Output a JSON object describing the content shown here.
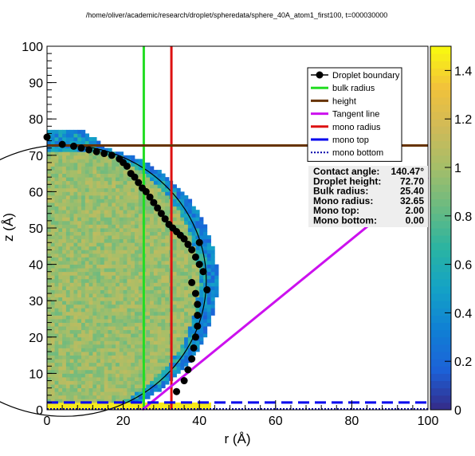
{
  "chart_data": {
    "type": "heatmap",
    "title": "/home/oliver/academic/research/droplet/spheredata/sphere_40A_atom1_first100, t=000030000",
    "xlabel": "r (Å)",
    "ylabel": "z (Å)",
    "xlim": [
      0,
      100
    ],
    "ylim": [
      0,
      100
    ],
    "x_ticks": [
      "0",
      "20",
      "40",
      "60",
      "80",
      "100"
    ],
    "y_ticks": [
      "0",
      "10",
      "20",
      "30",
      "40",
      "50",
      "60",
      "70",
      "80",
      "90",
      "100"
    ],
    "colorbar": {
      "range": [
        0,
        1.5
      ],
      "ticks": [
        "0",
        "0.2",
        "0.4",
        "0.6",
        "0.8",
        "1",
        "1.2",
        "1.4"
      ],
      "palette": [
        "#352a87",
        "#1c62d8",
        "#1080d4",
        "#14a2c6",
        "#2ab4a2",
        "#69ba81",
        "#a5be69",
        "#d0ba58",
        "#f2c23a",
        "#f9fb0e"
      ]
    },
    "legend": {
      "position": "top-right",
      "entries": [
        {
          "label": "Droplet boundary",
          "color": "#000000",
          "style": "marker-line"
        },
        {
          "label": "bulk radius",
          "color": "#22dd22",
          "style": "line"
        },
        {
          "label": "height",
          "color": "#663300",
          "style": "line"
        },
        {
          "label": "Tangent line",
          "color": "#cc11ee",
          "style": "line"
        },
        {
          "label": "mono radius",
          "color": "#dd1111",
          "style": "line"
        },
        {
          "label": "mono top",
          "color": "#0000ee",
          "style": "line"
        },
        {
          "label": "mono bottom",
          "color": "#0000aa",
          "style": "dotted"
        }
      ]
    },
    "annotations": [
      {
        "label": "Contact angle:",
        "value": "140.47°"
      },
      {
        "label": "Droplet height:",
        "value": "72.70"
      },
      {
        "label": "Bulk radius:",
        "value": "25.40"
      },
      {
        "label": "Mono radius:",
        "value": "32.65"
      },
      {
        "label": "Mono top:",
        "value": "2.00"
      },
      {
        "label": "Mono bottom:",
        "value": "0.00"
      }
    ],
    "height": 72.7,
    "bulk_radius": 25.4,
    "mono_radius": 32.65,
    "mono_top": 2.0,
    "mono_bottom": 0.0,
    "tangent_line": {
      "x": [
        25,
        100
      ],
      "y": [
        0,
        64
      ]
    },
    "fit_circle": {
      "center": [
        4.5,
        35.5
      ],
      "radius": 37.3
    },
    "boundary_points": {
      "x": [
        0,
        4,
        7,
        9,
        11,
        13,
        15,
        17,
        19,
        20,
        21,
        22,
        23,
        24,
        25,
        26,
        27,
        28,
        29,
        30,
        31,
        32,
        33,
        34,
        35,
        36,
        37,
        38,
        39,
        40,
        41,
        38,
        39,
        39.5,
        39.5,
        39.5,
        39,
        38.5,
        38,
        37,
        36,
        34,
        40,
        42
      ],
      "y": [
        75,
        73,
        72.5,
        72,
        71.5,
        71,
        70.5,
        70,
        69,
        68,
        67,
        65,
        64,
        62.5,
        61,
        60,
        58.5,
        57,
        55.5,
        54,
        52.5,
        51,
        50,
        49,
        48,
        47,
        45.5,
        44,
        42,
        40,
        38,
        35,
        32,
        29,
        26,
        23,
        20,
        17,
        14,
        11,
        8,
        5,
        46,
        33
      ]
    }
  }
}
